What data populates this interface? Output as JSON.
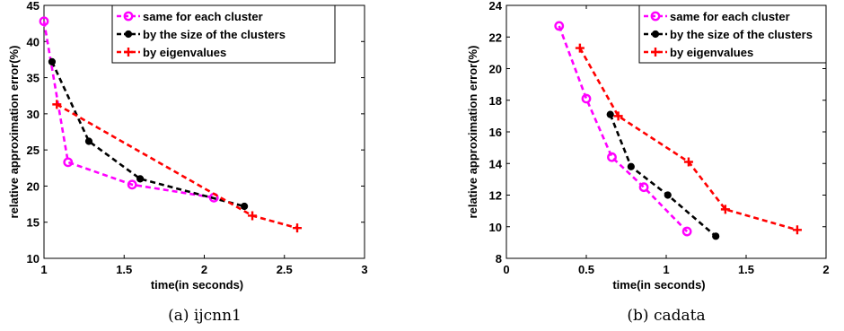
{
  "chart_data": [
    {
      "type": "line",
      "caption": "(a) ijcnn1",
      "xlabel": "time(in seconds)",
      "ylabel": "relative approximation error(%)",
      "xlim": [
        1,
        3
      ],
      "ylim": [
        10,
        45
      ],
      "xticks": [
        1,
        1.5,
        2,
        2.5,
        3
      ],
      "xtick_labels": [
        "1",
        "1.5",
        "2",
        "2.5",
        "3"
      ],
      "yticks": [
        10,
        15,
        20,
        25,
        30,
        35,
        40,
        45
      ],
      "ytick_labels": [
        "10",
        "15",
        "20",
        "25",
        "30",
        "35",
        "40",
        "45"
      ],
      "legend_position": "top-right",
      "series": [
        {
          "name": "same for each cluster",
          "color": "#ff00ff",
          "marker": "circle",
          "x": [
            1.0,
            1.15,
            1.55,
            2.06
          ],
          "y": [
            42.8,
            23.3,
            20.2,
            18.4
          ]
        },
        {
          "name": "by the size of the clusters",
          "color": "#000000",
          "marker": "dot",
          "x": [
            1.05,
            1.28,
            1.6,
            2.25
          ],
          "y": [
            37.2,
            26.2,
            21.0,
            17.2
          ]
        },
        {
          "name": "by eigenvalues",
          "color": "#ff0000",
          "marker": "plus",
          "x": [
            1.08,
            2.3,
            2.58
          ],
          "y": [
            31.3,
            15.9,
            14.2
          ]
        }
      ]
    },
    {
      "type": "line",
      "caption": "(b) cadata",
      "xlabel": "time(in seconds)",
      "ylabel": "relative approximation error(%)",
      "xlim": [
        0,
        2
      ],
      "ylim": [
        8,
        24
      ],
      "xticks": [
        0,
        0.5,
        1,
        1.5,
        2
      ],
      "xtick_labels": [
        "0",
        "0.5",
        "1",
        "1.5",
        "2"
      ],
      "yticks": [
        8,
        10,
        12,
        14,
        16,
        18,
        20,
        22,
        24
      ],
      "ytick_labels": [
        "8",
        "10",
        "12",
        "14",
        "16",
        "18",
        "20",
        "22",
        "24"
      ],
      "legend_position": "top-right",
      "series": [
        {
          "name": "same for each cluster",
          "color": "#ff00ff",
          "marker": "circle",
          "x": [
            0.33,
            0.5,
            0.66,
            0.86,
            1.13
          ],
          "y": [
            22.7,
            18.1,
            14.4,
            12.5,
            9.7
          ]
        },
        {
          "name": "by the size of the clusters",
          "color": "#000000",
          "marker": "dot",
          "x": [
            0.65,
            0.78,
            1.01,
            1.31
          ],
          "y": [
            17.1,
            13.8,
            12.0,
            9.4
          ]
        },
        {
          "name": "by eigenvalues",
          "color": "#ff0000",
          "marker": "plus",
          "x": [
            0.46,
            0.7,
            1.14,
            1.37,
            1.82
          ],
          "y": [
            21.3,
            17.0,
            14.1,
            11.1,
            9.8
          ]
        }
      ]
    }
  ]
}
